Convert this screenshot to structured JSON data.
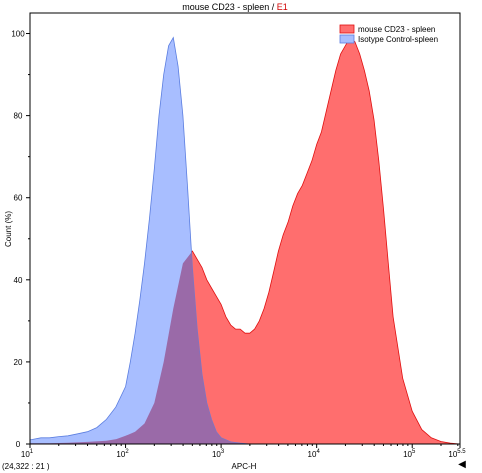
{
  "header": {
    "title_main": "mouse CD23 - spleen",
    "title_sep": " / ",
    "title_gate": "E1"
  },
  "status": {
    "coordinates": "(24,322 : 21 )",
    "nav_arrow": "◀"
  },
  "colors": {
    "red_fill": "#ff6e6e",
    "red_stroke": "#e01010",
    "blue_fill": "#a8beff",
    "blue_stroke": "#5b7ee0",
    "overlap_fill": "#9a6aa8"
  },
  "chart_data": {
    "type": "area",
    "xlabel": "APC-H",
    "ylabel": "Count (%)",
    "x_scale": "log",
    "xlim": [
      10,
      316228
    ],
    "ylim": [
      0,
      105
    ],
    "x_ticks": [
      {
        "value": 10,
        "base": "10",
        "exp": "1"
      },
      {
        "value": 100,
        "base": "10",
        "exp": "2"
      },
      {
        "value": 1000,
        "base": "10",
        "exp": "3"
      },
      {
        "value": 10000,
        "base": "10",
        "exp": "4"
      },
      {
        "value": 100000,
        "base": "10",
        "exp": "5"
      },
      {
        "value": 316228,
        "base": "10",
        "exp": "5.5"
      }
    ],
    "y_ticks": [
      0,
      20,
      40,
      60,
      80,
      100
    ],
    "legend_position": "top-right",
    "series": [
      {
        "name": "mouse CD23 - spleen",
        "color": "#ff6e6e",
        "x": [
          10,
          16,
          25,
          40,
          63,
          80,
          100,
          126,
          158,
          200,
          251,
          316,
          398,
          501,
          562,
          631,
          708,
          794,
          891,
          1000,
          1122,
          1259,
          1413,
          1585,
          1778,
          1995,
          2239,
          2512,
          2818,
          3162,
          3548,
          3981,
          4467,
          5012,
          5623,
          6310,
          7079,
          7943,
          8913,
          10000,
          11220,
          12589,
          14125,
          15849,
          17783,
          19953,
          22387,
          25119,
          28184,
          31623,
          35481,
          39811,
          44668,
          50119,
          56234,
          63096,
          79433,
          100000,
          125893,
          158489,
          199526,
          251189,
          316228
        ],
        "y": [
          0.2,
          0.2,
          0.3,
          0.5,
          0.8,
          1.2,
          2,
          3,
          5,
          10,
          20,
          33,
          44,
          47,
          45,
          43,
          40,
          38,
          36,
          34,
          31,
          29,
          28,
          28,
          27,
          27,
          28,
          30,
          33,
          37,
          42,
          47,
          51,
          54,
          58,
          61,
          63,
          66,
          69,
          73,
          76,
          81,
          86,
          91,
          95,
          97,
          99,
          98,
          95,
          91,
          86,
          79,
          69,
          57,
          44,
          31,
          16,
          8,
          3.5,
          1.5,
          0.6,
          0.2,
          0
        ]
      },
      {
        "name": "Isotype Control-spleen",
        "color": "#a8beff",
        "x": [
          10,
          13,
          16,
          20,
          25,
          32,
          40,
          50,
          63,
          79,
          100,
          112,
          126,
          141,
          158,
          178,
          200,
          224,
          251,
          282,
          316,
          355,
          398,
          447,
          501,
          562,
          631,
          708,
          794,
          891,
          1000,
          1259,
          1585,
          1995
        ],
        "y": [
          1,
          1.5,
          1.5,
          1.8,
          2,
          2.5,
          3,
          4,
          6,
          9,
          14,
          20,
          27,
          35,
          44,
          55,
          67,
          80,
          90,
          97,
          99,
          92,
          80,
          62,
          43,
          28,
          17,
          10,
          6,
          3,
          1.5,
          0.5,
          0.2,
          0
        ]
      }
    ]
  }
}
